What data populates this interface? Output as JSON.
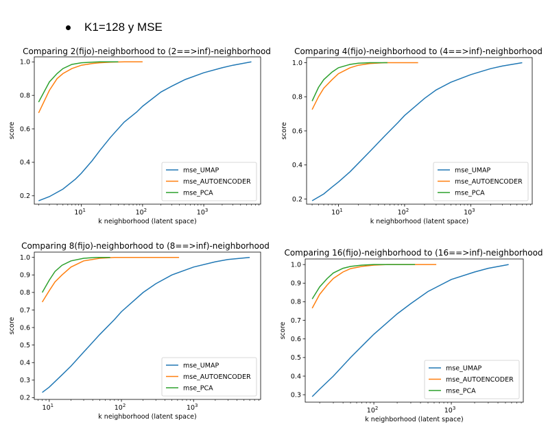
{
  "heading": "K1=128 y MSE",
  "colors": {
    "mse_UMAP": "#1f77b4",
    "mse_AUTOENCODER": "#ff7f0e",
    "mse_PCA": "#2ca02c"
  },
  "chart_data": [
    {
      "type": "line",
      "title": "Comparing 2(fijo)-neighborhood to (2==>inf)-neighborhood",
      "xlabel": "k neighborhood (latent space)",
      "ylabel": "score",
      "xscale": "log",
      "xlim": [
        1.7,
        8500
      ],
      "ylim": [
        0.15,
        1.03
      ],
      "yticks": [
        0.2,
        0.4,
        0.6,
        0.8,
        1.0
      ],
      "ytick_labels": [
        "0.2",
        "0.4",
        "0.6",
        "0.8",
        "1.0"
      ],
      "xticks": [
        10,
        100,
        1000
      ],
      "legend": "lower-right",
      "series": [
        {
          "name": "mse_UMAP",
          "x": [
            2,
            3,
            5,
            8,
            10,
            15,
            20,
            30,
            50,
            80,
            100,
            200,
            300,
            500,
            1000,
            2000,
            3000,
            6000
          ],
          "y": [
            0.17,
            0.195,
            0.24,
            0.3,
            0.335,
            0.41,
            0.47,
            0.55,
            0.64,
            0.7,
            0.735,
            0.82,
            0.855,
            0.895,
            0.935,
            0.965,
            0.98,
            1.0
          ]
        },
        {
          "name": "mse_AUTOENCODER",
          "x": [
            2,
            3,
            4,
            5,
            7,
            10,
            15,
            20,
            30,
            50,
            100
          ],
          "y": [
            0.695,
            0.83,
            0.9,
            0.93,
            0.96,
            0.98,
            0.99,
            0.995,
            0.998,
            1.0,
            1.0
          ]
        },
        {
          "name": "mse_PCA",
          "x": [
            2,
            3,
            4,
            5,
            7,
            10,
            15,
            20,
            40
          ],
          "y": [
            0.76,
            0.88,
            0.93,
            0.96,
            0.985,
            0.995,
            0.998,
            1.0,
            1.0
          ]
        }
      ]
    },
    {
      "type": "line",
      "title": "Comparing 4(fijo)-neighborhood to (4==>inf)-neighborhood",
      "xlabel": "k neighborhood (latent space)",
      "ylabel": "score",
      "xscale": "log",
      "xlim": [
        3.3,
        8500
      ],
      "ylim": [
        0.17,
        1.03
      ],
      "yticks": [
        0.2,
        0.4,
        0.6,
        0.8,
        1.0
      ],
      "ytick_labels": [
        "0.2",
        "0.4",
        "0.6",
        "0.8",
        "1.0"
      ],
      "xticks": [
        10,
        100,
        1000
      ],
      "legend": "lower-right",
      "series": [
        {
          "name": "mse_UMAP",
          "x": [
            4,
            6,
            8,
            10,
            15,
            20,
            30,
            50,
            80,
            100,
            200,
            300,
            500,
            1000,
            2000,
            3000,
            6000
          ],
          "y": [
            0.19,
            0.23,
            0.27,
            0.3,
            0.36,
            0.41,
            0.48,
            0.57,
            0.65,
            0.69,
            0.79,
            0.84,
            0.885,
            0.93,
            0.965,
            0.98,
            1.0
          ]
        },
        {
          "name": "mse_AUTOENCODER",
          "x": [
            4,
            5,
            6,
            8,
            10,
            15,
            20,
            30,
            50,
            100,
            160
          ],
          "y": [
            0.725,
            0.8,
            0.85,
            0.9,
            0.935,
            0.97,
            0.985,
            0.995,
            1.0,
            1.0,
            1.0
          ]
        },
        {
          "name": "mse_PCA",
          "x": [
            4,
            5,
            6,
            8,
            10,
            15,
            20,
            30,
            55
          ],
          "y": [
            0.775,
            0.855,
            0.9,
            0.945,
            0.97,
            0.99,
            0.997,
            1.0,
            1.0
          ]
        }
      ]
    },
    {
      "type": "line",
      "title": "Comparing 8(fijo)-neighborhood to (8==>inf)-neighborhood",
      "xlabel": "k neighborhood (latent space)",
      "ylabel": "score",
      "xscale": "log",
      "xlim": [
        6.2,
        8500
      ],
      "ylim": [
        0.19,
        1.03
      ],
      "yticks": [
        0.2,
        0.3,
        0.4,
        0.5,
        0.6,
        0.7,
        0.8,
        0.9,
        1.0
      ],
      "ytick_labels": [
        "0.2",
        "0.3",
        "0.4",
        "0.5",
        "0.6",
        "0.7",
        "0.8",
        "0.9",
        "1.0"
      ],
      "xticks": [
        10,
        100,
        1000
      ],
      "legend": "lower-right",
      "series": [
        {
          "name": "mse_UMAP",
          "x": [
            8,
            10,
            15,
            20,
            30,
            50,
            80,
            100,
            200,
            300,
            500,
            1000,
            2000,
            3000,
            6000
          ],
          "y": [
            0.23,
            0.26,
            0.33,
            0.38,
            0.46,
            0.56,
            0.645,
            0.69,
            0.8,
            0.85,
            0.9,
            0.945,
            0.975,
            0.988,
            1.0
          ]
        },
        {
          "name": "mse_AUTOENCODER",
          "x": [
            8,
            10,
            12,
            15,
            20,
            30,
            50,
            80,
            100,
            300,
            630
          ],
          "y": [
            0.745,
            0.81,
            0.86,
            0.9,
            0.945,
            0.98,
            0.995,
            1.0,
            1.0,
            1.0,
            1.0
          ]
        },
        {
          "name": "mse_PCA",
          "x": [
            8,
            10,
            12,
            15,
            20,
            30,
            45,
            70
          ],
          "y": [
            0.8,
            0.87,
            0.92,
            0.955,
            0.98,
            0.995,
            1.0,
            1.0
          ]
        }
      ]
    },
    {
      "type": "line",
      "title": "Comparing 16(fijo)-neighborhood to (16==>inf)-neighborhood",
      "xlabel": "k neighborhood (latent space)",
      "ylabel": "score",
      "xscale": "log",
      "xlim": [
        13,
        8500
      ],
      "ylim": [
        0.26,
        1.03
      ],
      "yticks": [
        0.3,
        0.4,
        0.5,
        0.6,
        0.7,
        0.8,
        0.9,
        1.0
      ],
      "ytick_labels": [
        "0.3",
        "0.4",
        "0.5",
        "0.6",
        "0.7",
        "0.8",
        "0.9",
        "1.0"
      ],
      "xticks": [
        100,
        1000
      ],
      "legend": "lower-right",
      "series": [
        {
          "name": "mse_UMAP",
          "x": [
            16,
            20,
            30,
            50,
            80,
            100,
            200,
            300,
            500,
            1000,
            2000,
            3000,
            5500
          ],
          "y": [
            0.29,
            0.33,
            0.4,
            0.5,
            0.585,
            0.625,
            0.735,
            0.79,
            0.855,
            0.92,
            0.96,
            0.98,
            1.0
          ]
        },
        {
          "name": "mse_AUTOENCODER",
          "x": [
            16,
            20,
            25,
            30,
            40,
            50,
            70,
            100,
            150,
            300,
            640
          ],
          "y": [
            0.765,
            0.84,
            0.89,
            0.925,
            0.96,
            0.978,
            0.99,
            0.997,
            1.0,
            1.0,
            1.0
          ]
        },
        {
          "name": "mse_PCA",
          "x": [
            16,
            20,
            25,
            30,
            40,
            50,
            70,
            100,
            340
          ],
          "y": [
            0.815,
            0.88,
            0.925,
            0.955,
            0.98,
            0.99,
            0.997,
            1.0,
            1.0
          ]
        }
      ]
    }
  ]
}
